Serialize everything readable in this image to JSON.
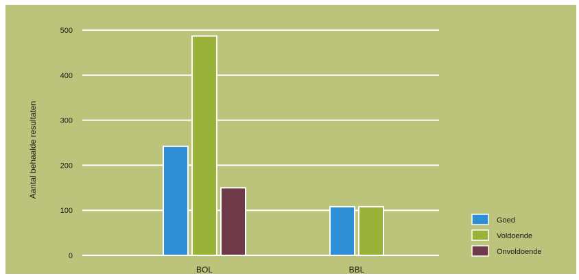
{
  "chart_data": {
    "type": "bar",
    "title": "",
    "xlabel": "",
    "ylabel": "Aantal behaalde resultaten",
    "categories": [
      "BOL",
      "BBL"
    ],
    "series": [
      {
        "name": "Goed",
        "color": "#2f8fd6",
        "values": [
          242,
          108
        ]
      },
      {
        "name": "Voldoende",
        "color": "#9ab23a",
        "values": [
          487,
          108
        ]
      },
      {
        "name": "Onvoldoende",
        "color": "#6e3a4a",
        "values": [
          150,
          null
        ]
      }
    ],
    "ylim": [
      0,
      500
    ],
    "yticks": [
      0,
      100,
      200,
      300,
      400,
      500
    ],
    "grid": true,
    "legend_position": "bottom-right",
    "background_color": "#bcc37a",
    "gridline_color": "#ffffff"
  }
}
